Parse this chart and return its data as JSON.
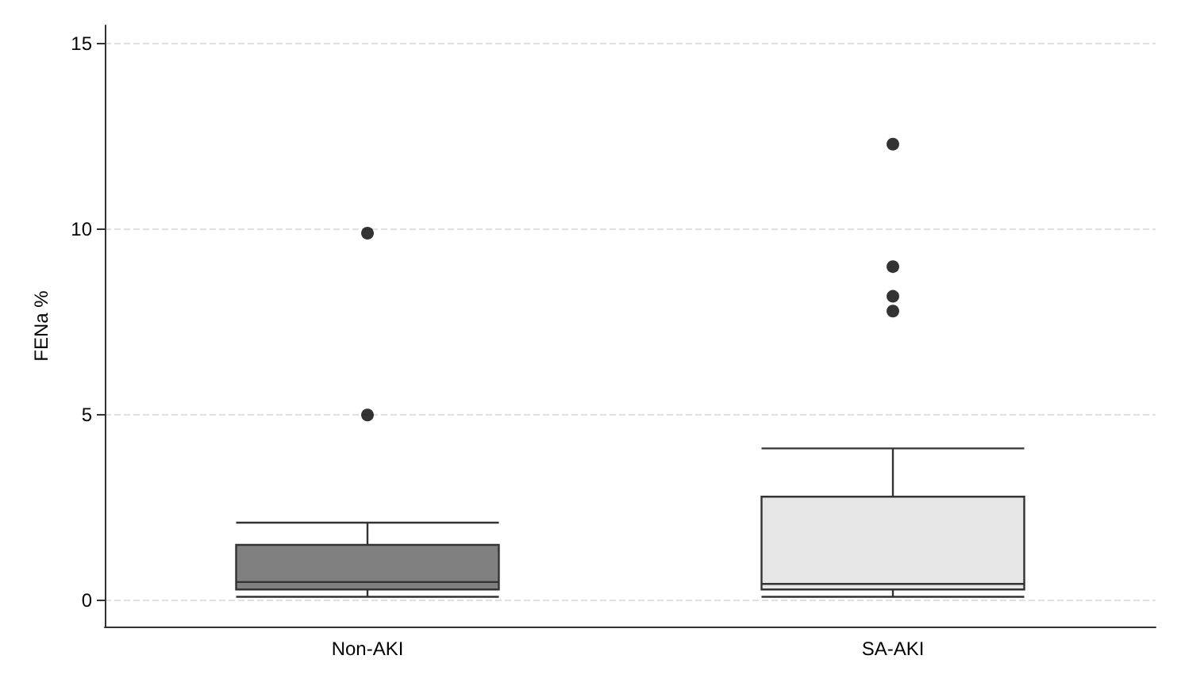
{
  "chart_data": {
    "type": "box",
    "ylabel": "FENa %",
    "categories": [
      "Non-AKI",
      "SA-AKI"
    ],
    "boxes": [
      {
        "low": 0.1,
        "q1": 0.3,
        "median": 0.5,
        "q3": 1.5,
        "high": 2.1,
        "outliers": [
          5.0,
          9.9
        ]
      },
      {
        "low": 0.1,
        "q1": 0.3,
        "median": 0.45,
        "q3": 2.8,
        "high": 4.1,
        "outliers": [
          7.8,
          8.2,
          9.0,
          12.3
        ]
      }
    ],
    "colors": [
      "#808080",
      "#e6e6e6"
    ],
    "ylim": [
      -0.7,
      15.5
    ],
    "yticks": [
      0,
      5,
      10,
      15
    ],
    "grid": "y"
  }
}
